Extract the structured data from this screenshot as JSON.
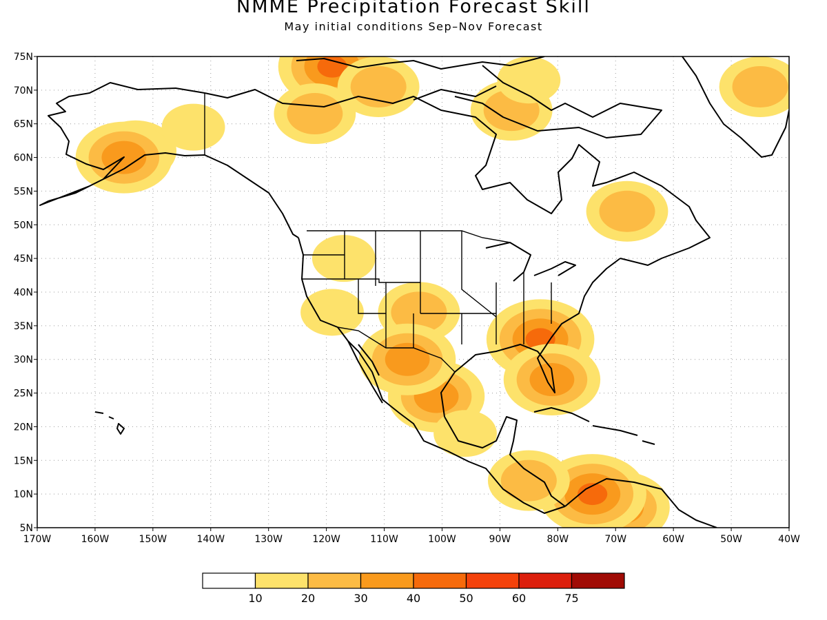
{
  "title": "NMME Precipitation Forecast Skill",
  "subtitle": "May initial conditions  Sep–Nov Forecast",
  "chart_data": {
    "type": "heatmap",
    "lon_range": [
      -170,
      -40
    ],
    "lat_range": [
      5,
      75
    ],
    "x_ticks": [
      "170W",
      "160W",
      "150W",
      "140W",
      "130W",
      "120W",
      "110W",
      "100W",
      "90W",
      "80W",
      "70W",
      "60W",
      "50W",
      "40W"
    ],
    "y_ticks": [
      "5N",
      "10N",
      "15N",
      "20N",
      "25N",
      "30N",
      "35N",
      "40N",
      "45N",
      "50N",
      "55N",
      "60N",
      "65N",
      "70N",
      "75N"
    ],
    "grid": "dotted",
    "colorbar": {
      "labels": [
        "10",
        "20",
        "30",
        "40",
        "50",
        "60",
        "75"
      ],
      "colors": [
        "#ffffff",
        "#fde26b",
        "#fcbb44",
        "#f99a1d",
        "#f66a0b",
        "#f4420b",
        "#dc1f0c",
        "#a00b05"
      ]
    },
    "regions": [
      {
        "lon": -119,
        "lat": 73.5,
        "level": 4
      },
      {
        "lon": -122,
        "lat": 66.5,
        "level": 2
      },
      {
        "lon": -153,
        "lat": 61,
        "level": 2
      },
      {
        "lon": -155,
        "lat": 60,
        "level": 3
      },
      {
        "lon": -143,
        "lat": 64.5,
        "level": 1
      },
      {
        "lon": -88,
        "lat": 67,
        "level": 2
      },
      {
        "lon": -111,
        "lat": 70.5,
        "level": 2
      },
      {
        "lon": -85,
        "lat": 71.5,
        "level": 1
      },
      {
        "lon": -45,
        "lat": 70.5,
        "level": 2
      },
      {
        "lon": -68,
        "lat": 52,
        "level": 2
      },
      {
        "lon": -117,
        "lat": 45,
        "level": 1
      },
      {
        "lon": -119,
        "lat": 37,
        "level": 1
      },
      {
        "lon": -104,
        "lat": 37,
        "level": 2
      },
      {
        "lon": -101,
        "lat": 24.5,
        "level": 3
      },
      {
        "lon": -106,
        "lat": 30,
        "level": 3
      },
      {
        "lon": -83,
        "lat": 33,
        "level": 4
      },
      {
        "lon": -81,
        "lat": 27,
        "level": 3
      },
      {
        "lon": -69,
        "lat": 8,
        "level": 3
      },
      {
        "lon": -74,
        "lat": 10,
        "level": 4
      },
      {
        "lon": -85,
        "lat": 12,
        "level": 2
      },
      {
        "lon": -96,
        "lat": 19,
        "level": 1
      }
    ]
  }
}
